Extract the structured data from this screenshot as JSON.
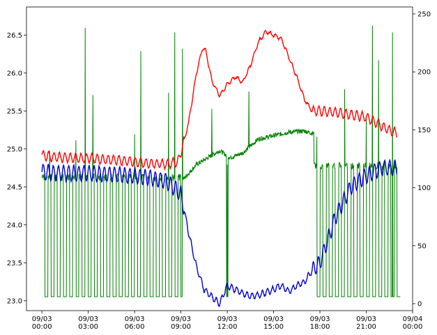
{
  "chart_data": {
    "type": "line",
    "title": "",
    "xlabel": "",
    "ylabel_left": "",
    "ylabel_right": "",
    "x_range_hours": [
      -1,
      24
    ],
    "x_ticks": [
      {
        "hour": 0,
        "date": "09/03",
        "time": "00:00"
      },
      {
        "hour": 3,
        "date": "09/03",
        "time": "03:00"
      },
      {
        "hour": 6,
        "date": "09/03",
        "time": "06:00"
      },
      {
        "hour": 9,
        "date": "09/03",
        "time": "09:00"
      },
      {
        "hour": 12,
        "date": "09/03",
        "time": "12:00"
      },
      {
        "hour": 15,
        "date": "09/03",
        "time": "15:00"
      },
      {
        "hour": 18,
        "date": "09/03",
        "time": "18:00"
      },
      {
        "hour": 21,
        "date": "09/03",
        "time": "21:00"
      },
      {
        "hour": 24,
        "date": "09/04",
        "time": "00:00"
      }
    ],
    "y_left": {
      "range": [
        22.87,
        26.87
      ],
      "ticks": [
        "23.0",
        "23.5",
        "24.0",
        "24.5",
        "25.0",
        "25.5",
        "26.0",
        "26.5"
      ]
    },
    "y_right": {
      "range": [
        -6,
        256
      ],
      "ticks": [
        "0",
        "50",
        "100",
        "150",
        "200",
        "250"
      ]
    },
    "series": [
      {
        "axis": "left",
        "color": "#ff0000",
        "points": [
          [
            0,
            24.92
          ],
          [
            0.5,
            24.9
          ],
          [
            1,
            24.89
          ],
          [
            2,
            24.88
          ],
          [
            3,
            24.88
          ],
          [
            4,
            24.86
          ],
          [
            5,
            24.85
          ],
          [
            6,
            24.83
          ],
          [
            7,
            24.81
          ],
          [
            8,
            24.8
          ],
          [
            8.8,
            24.83
          ],
          [
            9,
            24.95
          ],
          [
            9.5,
            25.35
          ],
          [
            10,
            26.0
          ],
          [
            10.4,
            26.33
          ],
          [
            10.6,
            26.3
          ],
          [
            11,
            25.9
          ],
          [
            11.5,
            25.7
          ],
          [
            12,
            25.85
          ],
          [
            12.5,
            25.95
          ],
          [
            13,
            25.88
          ],
          [
            13.5,
            26.1
          ],
          [
            14,
            26.4
          ],
          [
            14.5,
            26.55
          ],
          [
            15,
            26.5
          ],
          [
            15.5,
            26.45
          ],
          [
            16,
            26.2
          ],
          [
            16.5,
            25.95
          ],
          [
            17,
            25.65
          ],
          [
            17.5,
            25.5
          ],
          [
            18,
            25.5
          ],
          [
            19,
            25.48
          ],
          [
            20,
            25.45
          ],
          [
            21,
            25.42
          ],
          [
            22,
            25.3
          ],
          [
            22.5,
            25.25
          ],
          [
            23,
            25.2
          ]
        ],
        "ripple": 0.06
      },
      {
        "axis": "left",
        "color": "#0000cc",
        "points": [
          [
            0,
            24.7
          ],
          [
            1,
            24.68
          ],
          [
            2,
            24.68
          ],
          [
            3,
            24.68
          ],
          [
            4,
            24.67
          ],
          [
            5,
            24.66
          ],
          [
            6,
            24.64
          ],
          [
            7,
            24.62
          ],
          [
            8,
            24.58
          ],
          [
            8.5,
            24.5
          ],
          [
            9,
            24.4
          ],
          [
            9.2,
            24.2
          ],
          [
            9.6,
            23.8
          ],
          [
            10,
            23.45
          ],
          [
            10.5,
            23.15
          ],
          [
            11,
            23.05
          ],
          [
            11.5,
            22.96
          ],
          [
            12,
            23.2
          ],
          [
            12.5,
            23.15
          ],
          [
            13,
            23.1
          ],
          [
            13.5,
            23.06
          ],
          [
            14,
            23.07
          ],
          [
            15,
            23.15
          ],
          [
            15.5,
            23.2
          ],
          [
            16,
            23.12
          ],
          [
            16.5,
            23.2
          ],
          [
            17,
            23.25
          ],
          [
            17.5,
            23.4
          ],
          [
            18,
            23.5
          ],
          [
            18.5,
            23.8
          ],
          [
            19,
            24.1
          ],
          [
            20,
            24.5
          ],
          [
            21,
            24.65
          ],
          [
            22,
            24.75
          ],
          [
            23,
            24.75
          ]
        ],
        "ripple": 0.1
      },
      {
        "axis": "right",
        "color": "#008000",
        "lo": 6,
        "hi": 112,
        "cycle_hours": 0.4,
        "cycle_start": 0,
        "cycle_end_1": 9.1,
        "cycle_start_2": 17.6,
        "cycle_end_2": 23.2,
        "spikes": [
          [
            0.5,
            132
          ],
          [
            2.2,
            141
          ],
          [
            2.8,
            238
          ],
          [
            3.3,
            180
          ],
          [
            6,
            146
          ],
          [
            6.4,
            218
          ],
          [
            8.2,
            182
          ],
          [
            8.6,
            234
          ],
          [
            9.1,
            220
          ],
          [
            11,
            168
          ],
          [
            12,
            120
          ],
          [
            13.4,
            183
          ],
          [
            17.8,
            144
          ],
          [
            19.6,
            185
          ],
          [
            21,
            160
          ],
          [
            21.4,
            240
          ],
          [
            21.8,
            210
          ],
          [
            22.7,
            234
          ]
        ],
        "plateau": [
          [
            9.2,
            108
          ],
          [
            10,
            120
          ],
          [
            11,
            128
          ],
          [
            11.5,
            132
          ],
          [
            12.2,
            126
          ],
          [
            13,
            130
          ],
          [
            14,
            142
          ],
          [
            15,
            145
          ],
          [
            16,
            148
          ],
          [
            17,
            149
          ],
          [
            17.5,
            147
          ]
        ]
      }
    ]
  }
}
